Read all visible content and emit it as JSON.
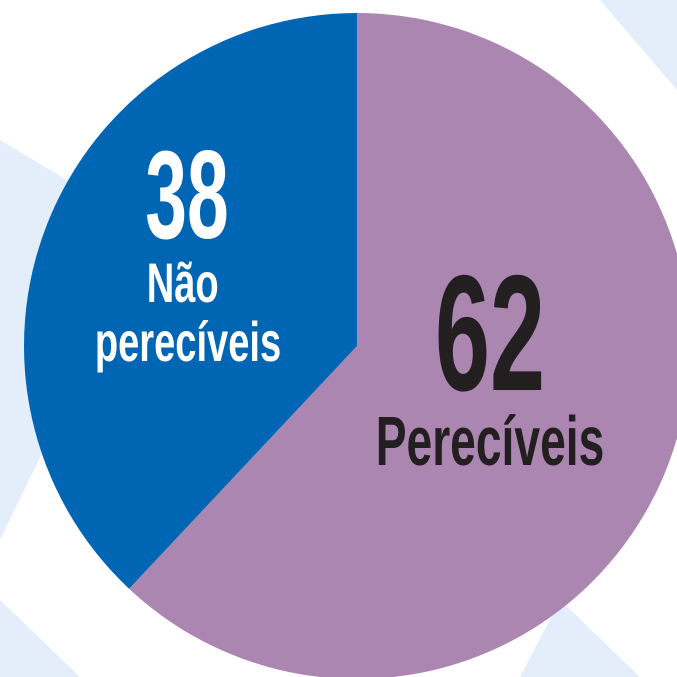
{
  "chart_data": {
    "type": "pie",
    "categories": [
      "Perecíveis",
      "Não perecíveis"
    ],
    "values": [
      62,
      38
    ],
    "colors": [
      "#ab86b0",
      "#0066b3"
    ]
  }
}
